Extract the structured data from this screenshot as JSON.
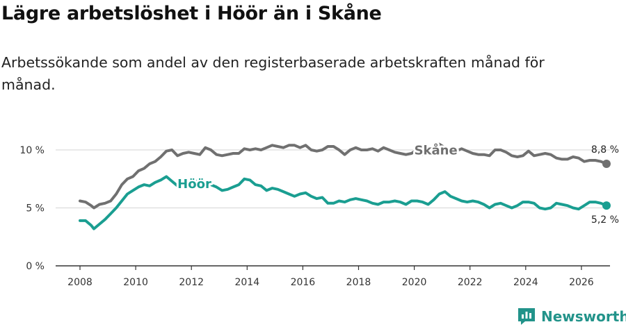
{
  "title": "Lägre arbetslöshet i Höör än i Skåne",
  "subtitle": "Arbetssökande som andel av den registerbaserade arbetskraften månad för månad.",
  "brand": {
    "name": "Newsworthy"
  },
  "colors": {
    "skane": "#707070",
    "hoor": "#1a9e91",
    "grid": "#dcdcdc",
    "axis": "#333333",
    "brand": "#22938a"
  },
  "chart_data": {
    "type": "line",
    "title": "Lägre arbetslöshet i Höör än i Skåne",
    "xlabel": "",
    "ylabel": "",
    "xlim": [
      2007.2,
      2026.9
    ],
    "ylim": [
      0,
      10
    ],
    "x_ticks": [
      2008,
      2010,
      2012,
      2014,
      2016,
      2018,
      2020,
      2022,
      2024,
      2026
    ],
    "y_ticks": [
      {
        "value": 0,
        "label": "0 %"
      },
      {
        "value": 5,
        "label": "5 %"
      },
      {
        "value": 10,
        "label": "10 %"
      }
    ],
    "grid": true,
    "series": [
      {
        "name": "Skåne",
        "key": "skane",
        "end_label": "8,8 %",
        "label_x": 2020.0,
        "label_y": 9.6,
        "points": [
          [
            2008.0,
            5.6
          ],
          [
            2008.2,
            5.5
          ],
          [
            2008.4,
            5.2
          ],
          [
            2008.5,
            5.0
          ],
          [
            2008.7,
            5.3
          ],
          [
            2008.9,
            5.4
          ],
          [
            2009.1,
            5.6
          ],
          [
            2009.3,
            6.2
          ],
          [
            2009.5,
            7.0
          ],
          [
            2009.7,
            7.5
          ],
          [
            2009.9,
            7.7
          ],
          [
            2010.1,
            8.2
          ],
          [
            2010.3,
            8.4
          ],
          [
            2010.5,
            8.8
          ],
          [
            2010.7,
            9.0
          ],
          [
            2010.9,
            9.4
          ],
          [
            2011.1,
            9.9
          ],
          [
            2011.3,
            10.0
          ],
          [
            2011.5,
            9.5
          ],
          [
            2011.7,
            9.7
          ],
          [
            2011.9,
            9.8
          ],
          [
            2012.1,
            9.7
          ],
          [
            2012.3,
            9.6
          ],
          [
            2012.5,
            10.2
          ],
          [
            2012.7,
            10.0
          ],
          [
            2012.9,
            9.6
          ],
          [
            2013.1,
            9.5
          ],
          [
            2013.3,
            9.6
          ],
          [
            2013.5,
            9.7
          ],
          [
            2013.7,
            9.7
          ],
          [
            2013.9,
            10.1
          ],
          [
            2014.1,
            10.0
          ],
          [
            2014.3,
            10.1
          ],
          [
            2014.5,
            10.0
          ],
          [
            2014.7,
            10.2
          ],
          [
            2014.9,
            10.4
          ],
          [
            2015.1,
            10.3
          ],
          [
            2015.3,
            10.2
          ],
          [
            2015.5,
            10.4
          ],
          [
            2015.7,
            10.4
          ],
          [
            2015.9,
            10.2
          ],
          [
            2016.1,
            10.4
          ],
          [
            2016.3,
            10.0
          ],
          [
            2016.5,
            9.9
          ],
          [
            2016.7,
            10.0
          ],
          [
            2016.9,
            10.3
          ],
          [
            2017.1,
            10.3
          ],
          [
            2017.3,
            10.0
          ],
          [
            2017.5,
            9.6
          ],
          [
            2017.7,
            10.0
          ],
          [
            2017.9,
            10.2
          ],
          [
            2018.1,
            10.0
          ],
          [
            2018.3,
            10.0
          ],
          [
            2018.5,
            10.1
          ],
          [
            2018.7,
            9.9
          ],
          [
            2018.9,
            10.2
          ],
          [
            2019.1,
            10.0
          ],
          [
            2019.3,
            9.8
          ],
          [
            2019.5,
            9.7
          ],
          [
            2019.7,
            9.6
          ],
          [
            2019.9,
            9.7
          ],
          [
            2020.1,
            10.0
          ],
          [
            2020.3,
            9.6
          ],
          [
            2020.5,
            9.7
          ],
          [
            2020.7,
            9.9
          ],
          [
            2020.9,
            10.5
          ],
          [
            2021.1,
            10.2
          ],
          [
            2021.3,
            9.8
          ],
          [
            2021.5,
            9.9
          ],
          [
            2021.7,
            10.1
          ],
          [
            2021.9,
            9.9
          ],
          [
            2022.1,
            9.7
          ],
          [
            2022.3,
            9.6
          ],
          [
            2022.5,
            9.6
          ],
          [
            2022.7,
            9.5
          ],
          [
            2022.9,
            10.0
          ],
          [
            2023.1,
            10.0
          ],
          [
            2023.3,
            9.8
          ],
          [
            2023.5,
            9.5
          ],
          [
            2023.7,
            9.4
          ],
          [
            2023.9,
            9.5
          ],
          [
            2024.1,
            9.9
          ],
          [
            2024.3,
            9.5
          ],
          [
            2024.5,
            9.6
          ],
          [
            2024.7,
            9.7
          ],
          [
            2024.9,
            9.6
          ],
          [
            2025.1,
            9.3
          ],
          [
            2025.3,
            9.2
          ],
          [
            2025.5,
            9.2
          ],
          [
            2025.7,
            9.4
          ],
          [
            2025.9,
            9.3
          ],
          [
            2026.1,
            9.0
          ],
          [
            2026.3,
            9.1
          ],
          [
            2026.5,
            9.1
          ],
          [
            2026.7,
            9.0
          ],
          [
            2026.9,
            8.8
          ]
        ]
      },
      {
        "name": "Höör",
        "key": "hoor",
        "end_label": "5,2 %",
        "label_x": 2011.5,
        "label_y": 6.7,
        "points": [
          [
            2008.0,
            3.9
          ],
          [
            2008.2,
            3.9
          ],
          [
            2008.4,
            3.5
          ],
          [
            2008.5,
            3.2
          ],
          [
            2008.7,
            3.6
          ],
          [
            2008.9,
            4.0
          ],
          [
            2009.1,
            4.5
          ],
          [
            2009.3,
            5.0
          ],
          [
            2009.5,
            5.6
          ],
          [
            2009.7,
            6.2
          ],
          [
            2009.9,
            6.5
          ],
          [
            2010.1,
            6.8
          ],
          [
            2010.3,
            7.0
          ],
          [
            2010.5,
            6.9
          ],
          [
            2010.7,
            7.2
          ],
          [
            2010.9,
            7.4
          ],
          [
            2011.1,
            7.7
          ],
          [
            2011.3,
            7.3
          ],
          [
            2011.5,
            6.9
          ],
          [
            2011.7,
            7.2
          ],
          [
            2011.9,
            7.1
          ],
          [
            2012.1,
            7.3
          ],
          [
            2012.3,
            7.3
          ],
          [
            2012.5,
            7.2
          ],
          [
            2012.7,
            7.0
          ],
          [
            2012.9,
            6.8
          ],
          [
            2013.1,
            6.5
          ],
          [
            2013.3,
            6.6
          ],
          [
            2013.5,
            6.8
          ],
          [
            2013.7,
            7.0
          ],
          [
            2013.9,
            7.5
          ],
          [
            2014.1,
            7.4
          ],
          [
            2014.3,
            7.0
          ],
          [
            2014.5,
            6.9
          ],
          [
            2014.7,
            6.5
          ],
          [
            2014.9,
            6.7
          ],
          [
            2015.1,
            6.6
          ],
          [
            2015.3,
            6.4
          ],
          [
            2015.5,
            6.2
          ],
          [
            2015.7,
            6.0
          ],
          [
            2015.9,
            6.2
          ],
          [
            2016.1,
            6.3
          ],
          [
            2016.3,
            6.0
          ],
          [
            2016.5,
            5.8
          ],
          [
            2016.7,
            5.9
          ],
          [
            2016.9,
            5.4
          ],
          [
            2017.1,
            5.4
          ],
          [
            2017.3,
            5.6
          ],
          [
            2017.5,
            5.5
          ],
          [
            2017.7,
            5.7
          ],
          [
            2017.9,
            5.8
          ],
          [
            2018.1,
            5.7
          ],
          [
            2018.3,
            5.6
          ],
          [
            2018.5,
            5.4
          ],
          [
            2018.7,
            5.3
          ],
          [
            2018.9,
            5.5
          ],
          [
            2019.1,
            5.5
          ],
          [
            2019.3,
            5.6
          ],
          [
            2019.5,
            5.5
          ],
          [
            2019.7,
            5.3
          ],
          [
            2019.9,
            5.6
          ],
          [
            2020.1,
            5.6
          ],
          [
            2020.3,
            5.5
          ],
          [
            2020.5,
            5.3
          ],
          [
            2020.7,
            5.7
          ],
          [
            2020.9,
            6.2
          ],
          [
            2021.1,
            6.4
          ],
          [
            2021.3,
            6.0
          ],
          [
            2021.5,
            5.8
          ],
          [
            2021.7,
            5.6
          ],
          [
            2021.9,
            5.5
          ],
          [
            2022.1,
            5.6
          ],
          [
            2022.3,
            5.5
          ],
          [
            2022.5,
            5.3
          ],
          [
            2022.7,
            5.0
          ],
          [
            2022.9,
            5.3
          ],
          [
            2023.1,
            5.4
          ],
          [
            2023.3,
            5.2
          ],
          [
            2023.5,
            5.0
          ],
          [
            2023.7,
            5.2
          ],
          [
            2023.9,
            5.5
          ],
          [
            2024.1,
            5.5
          ],
          [
            2024.3,
            5.4
          ],
          [
            2024.5,
            5.0
          ],
          [
            2024.7,
            4.9
          ],
          [
            2024.9,
            5.0
          ],
          [
            2025.1,
            5.4
          ],
          [
            2025.3,
            5.3
          ],
          [
            2025.5,
            5.2
          ],
          [
            2025.7,
            5.0
          ],
          [
            2025.9,
            4.9
          ],
          [
            2026.1,
            5.2
          ],
          [
            2026.3,
            5.5
          ],
          [
            2026.5,
            5.5
          ],
          [
            2026.7,
            5.4
          ],
          [
            2026.9,
            5.2
          ]
        ]
      }
    ]
  }
}
